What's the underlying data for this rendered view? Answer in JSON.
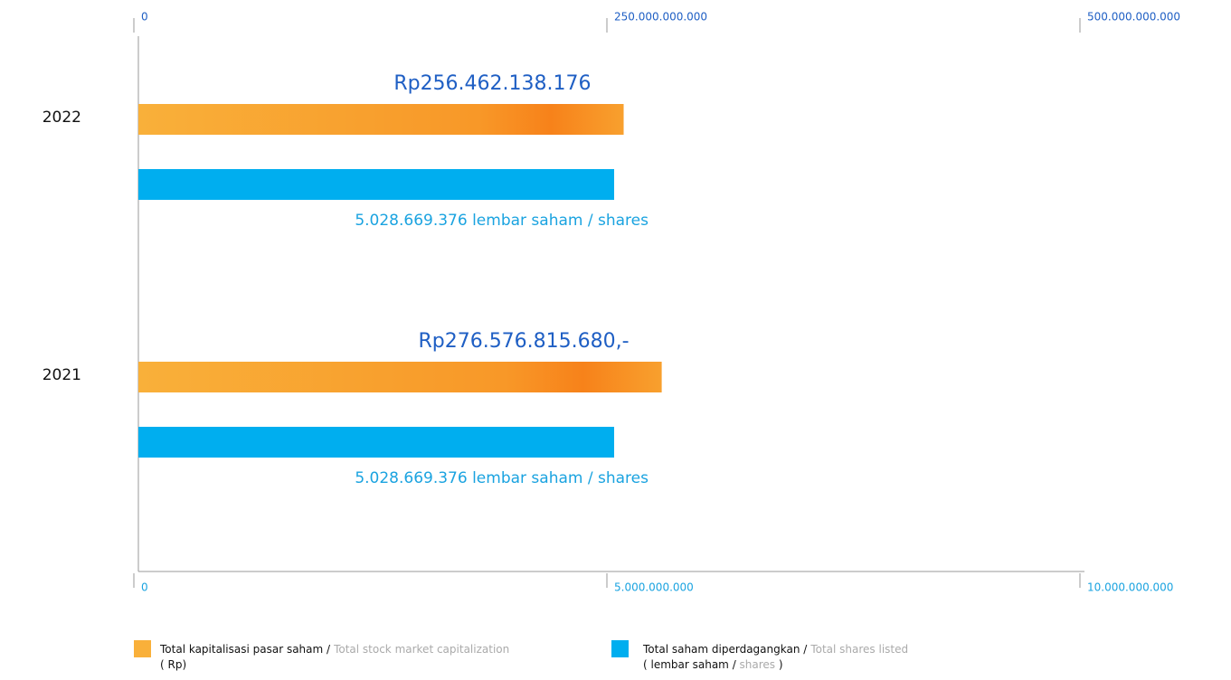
{
  "chart_data": {
    "type": "bar",
    "orientation": "horizontal",
    "categories": [
      "2022",
      "2021"
    ],
    "xlim": [
      0,
      500000000000
    ],
    "xticks": [
      0,
      {
        "value": 250000000000,
        "label": "250.000.000.000"
      },
      {
        "value": 500000000000,
        "label": "500.000.000.000"
      }
    ],
    "x2lim": [
      0,
      10000000000
    ],
    "x2ticks": [
      0,
      {
        "value": 5000000000,
        "label": "5.000.000.000"
      },
      {
        "value": 10000000000,
        "label": "10.000.000.000"
      }
    ],
    "series": [
      {
        "name": "Total kapitalisasi pasar saham /",
        "name_en": "Total stock market capitalization",
        "unit_parts": [
          "( Rp)"
        ],
        "color": "#f8a02e",
        "axis": "x",
        "values": [
          256462138176,
          276576815680
        ],
        "value_labels": [
          "Rp256.462.138.176",
          "Rp276.576.815.680,-"
        ]
      },
      {
        "name": "Total saham diperdagangkan /",
        "name_en": "Total shares listed",
        "unit_parts": [
          "( lembar saham / ",
          "shares",
          " )"
        ],
        "color": "#00aeef",
        "axis": "x2",
        "values": [
          5028669376,
          5028669376
        ],
        "value_labels": [
          "5.028.669.376  lembar saham / shares",
          "5.028.669.376 lembar saham / shares"
        ]
      }
    ]
  }
}
